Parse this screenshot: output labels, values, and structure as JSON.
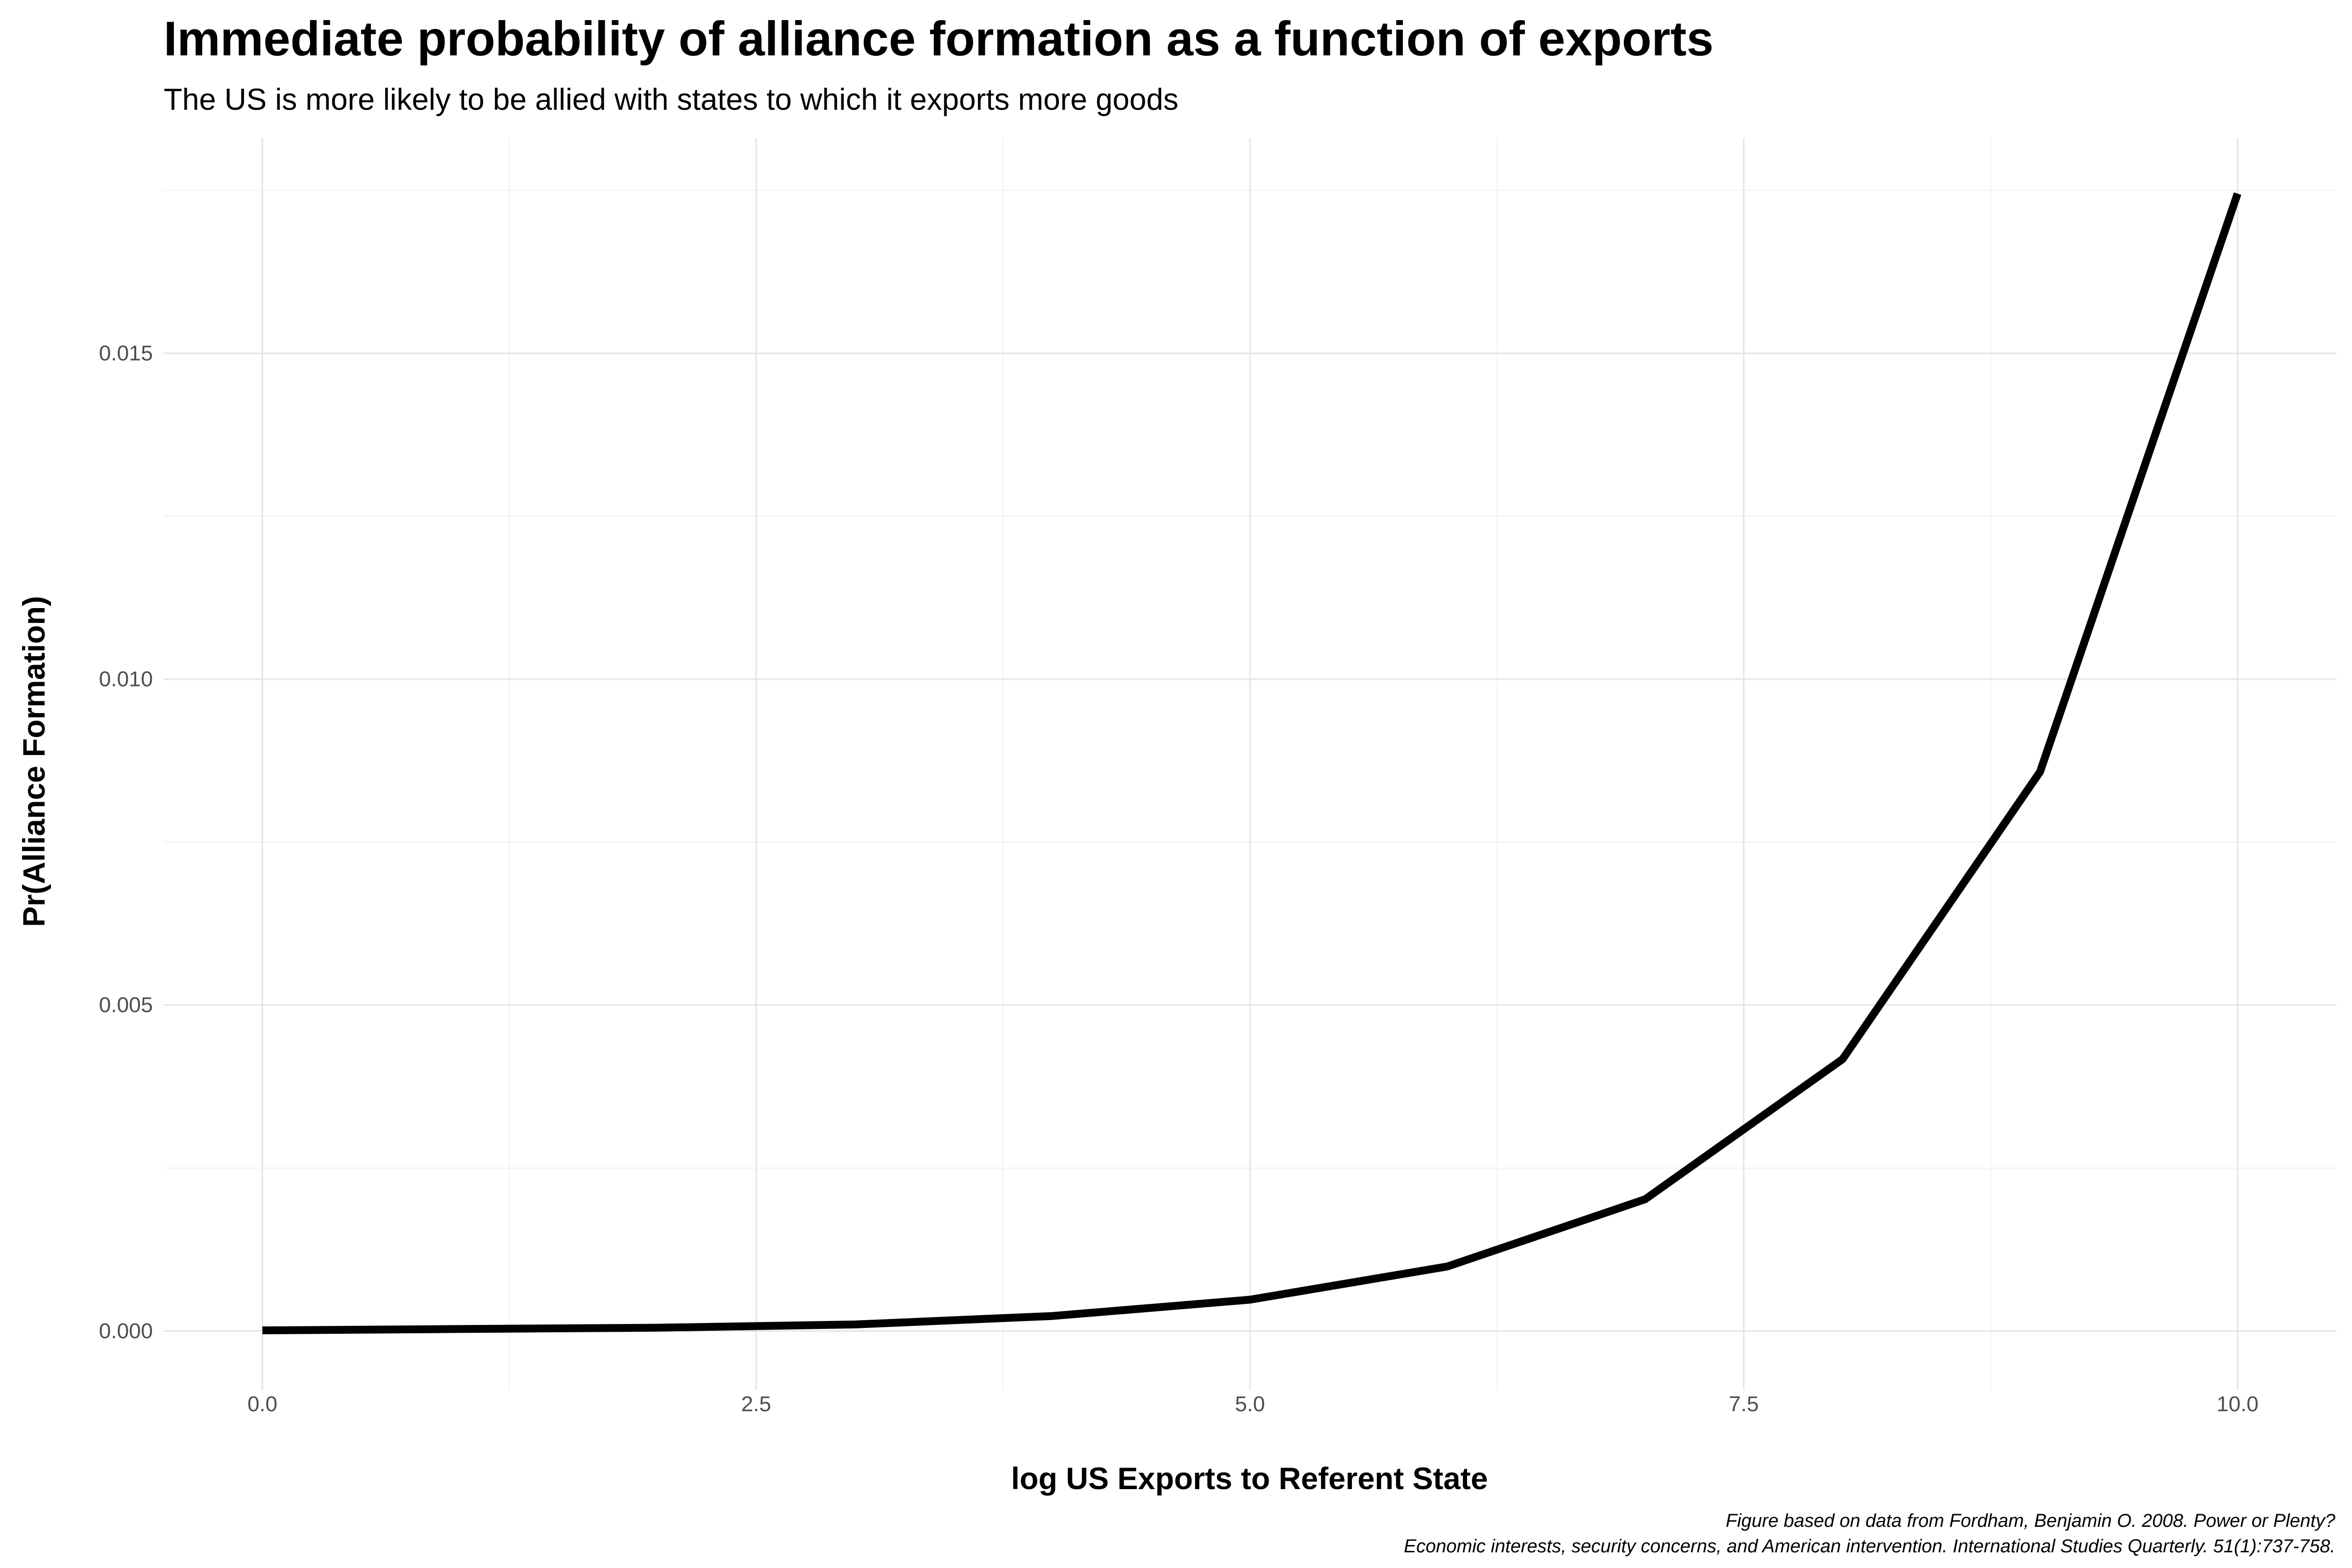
{
  "chart_data": {
    "type": "line",
    "title": "Immediate probability of alliance formation as a function of exports",
    "subtitle": "The US is more likely to be allied with states to which it exports more goods",
    "xlabel": "log US Exports to Referent State",
    "ylabel": "Pr(Alliance Formation)",
    "caption_line1": "Figure based on data from Fordham, Benjamin O. 2008. Power or Plenty?",
    "caption_line2": "Economic interests, security concerns, and American intervention. International Studies Quarterly. 51(1):737-758.",
    "xlim": [
      -0.5,
      10.5
    ],
    "ylim": [
      -0.0009,
      0.0183
    ],
    "x_ticks": [
      0.0,
      2.5,
      5.0,
      7.5,
      10.0
    ],
    "x_tick_labels": [
      "0.0",
      "2.5",
      "5.0",
      "7.5",
      "10.0"
    ],
    "y_ticks": [
      0.0,
      0.005,
      0.01,
      0.015
    ],
    "y_tick_labels": [
      "0.000",
      "0.005",
      "0.010",
      "0.015"
    ],
    "grid": true,
    "line_color": "#000000",
    "series": [
      {
        "x": [
          0,
          1,
          2,
          3,
          4,
          5,
          6,
          7,
          8,
          9,
          10
        ],
        "values": [
          1e-05,
          3e-05,
          5e-05,
          0.0001,
          0.00023,
          0.00048,
          0.00099,
          0.00202,
          0.00417,
          0.00858,
          0.01745
        ]
      }
    ]
  }
}
